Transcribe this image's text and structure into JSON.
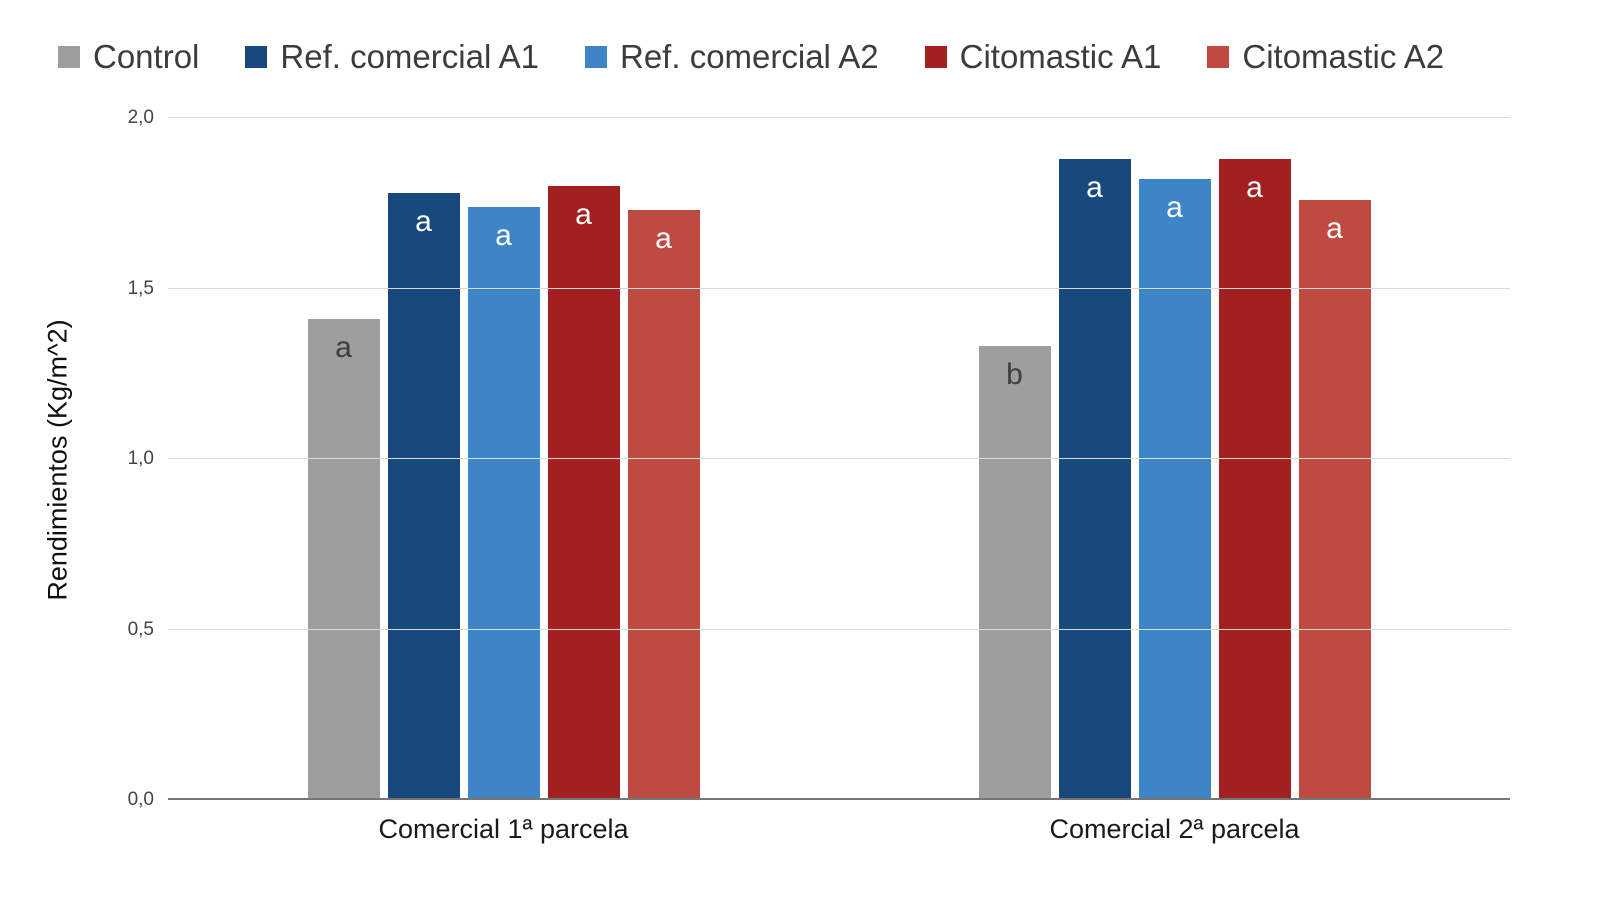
{
  "chart_data": {
    "type": "bar",
    "title": "",
    "xlabel": "",
    "ylabel": "Rendimientos (Kg/m^2)",
    "ylim": [
      0,
      2.0
    ],
    "grid": true,
    "legend_position": "top",
    "yticks": [
      {
        "value": 0.0,
        "label": "0,0"
      },
      {
        "value": 0.5,
        "label": "0,5"
      },
      {
        "value": 1.0,
        "label": "1,0"
      },
      {
        "value": 1.5,
        "label": "1,5"
      },
      {
        "value": 2.0,
        "label": "2,0"
      }
    ],
    "categories": [
      "Comercial 1ª parcela",
      "Comercial 2ª parcela"
    ],
    "series": [
      {
        "name": "Control",
        "color": "#9e9e9e",
        "values": [
          1.41,
          1.33
        ],
        "bar_labels": [
          "a",
          "b"
        ],
        "bar_label_color": "#3d3d3d"
      },
      {
        "name": "Ref. comercial A1",
        "color": "#17497f",
        "values": [
          1.78,
          1.88
        ],
        "bar_labels": [
          "a",
          "a"
        ],
        "bar_label_color": "#ffffff"
      },
      {
        "name": "Ref. comercial A2",
        "color": "#3d85c6",
        "values": [
          1.74,
          1.82
        ],
        "bar_labels": [
          "a",
          "a"
        ],
        "bar_label_color": "#ffffff"
      },
      {
        "name": "Citomastic A1",
        "color": "#a32020",
        "values": [
          1.8,
          1.88
        ],
        "bar_labels": [
          "a",
          "a"
        ],
        "bar_label_color": "#ffffff"
      },
      {
        "name": "Citomastic A2",
        "color": "#bf4a42",
        "values": [
          1.73,
          1.76
        ],
        "bar_labels": [
          "a",
          "a"
        ],
        "bar_label_color": "#ffffff"
      }
    ]
  }
}
